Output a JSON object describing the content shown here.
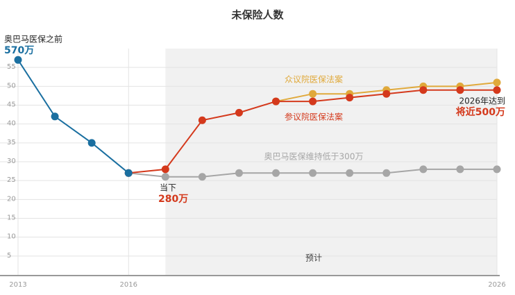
{
  "chart_data": {
    "type": "line",
    "title": "未保险人数",
    "x": [
      2013,
      2014,
      2015,
      2016,
      2017,
      2018,
      2019,
      2020,
      2021,
      2022,
      2023,
      2024,
      2025,
      2026
    ],
    "series": [
      {
        "name": "奥巴马医保维持低于300万",
        "color": "#a6a6a6",
        "values": [
          null,
          null,
          null,
          27,
          26,
          26,
          27,
          27,
          27,
          27,
          27,
          28,
          28,
          28
        ]
      },
      {
        "name": "众议院医保法案",
        "color": "#e0a93b",
        "values": [
          null,
          null,
          null,
          null,
          null,
          null,
          null,
          46,
          48,
          48,
          49,
          50,
          50,
          51
        ]
      },
      {
        "name": "参议院医保法案",
        "color": "#d4391c",
        "values": [
          null,
          null,
          null,
          27,
          28,
          41,
          43,
          46,
          46,
          47,
          48,
          49,
          49,
          49
        ]
      },
      {
        "name": "奥巴马医保之前",
        "color": "#1a6fa0",
        "values": [
          57,
          42,
          35,
          27,
          null,
          null,
          null,
          null,
          null,
          null,
          null,
          null,
          null,
          null
        ]
      }
    ],
    "annotations": [
      {
        "text": "570万",
        "color": "#1a6fa0",
        "bold": true
      },
      {
        "text": "当下",
        "color": "#222222",
        "bold": false
      },
      {
        "text": "280万",
        "color": "#d4391c",
        "bold": true
      },
      {
        "text": "2026年达到",
        "color": "#222222",
        "bold": false
      },
      {
        "text": "将近500万",
        "color": "#d4391c",
        "bold": true
      },
      {
        "text": "预计",
        "color": "#444444",
        "bold": false
      }
    ],
    "forecast_range": [
      2017,
      2026
    ],
    "xlim": [
      2013,
      2026
    ],
    "xticks": [
      2013,
      2016,
      2026
    ],
    "ylim": [
      0,
      60
    ],
    "yticks": [
      5,
      10,
      15,
      20,
      25,
      30,
      35,
      40,
      45,
      50,
      55
    ],
    "grid": true
  }
}
